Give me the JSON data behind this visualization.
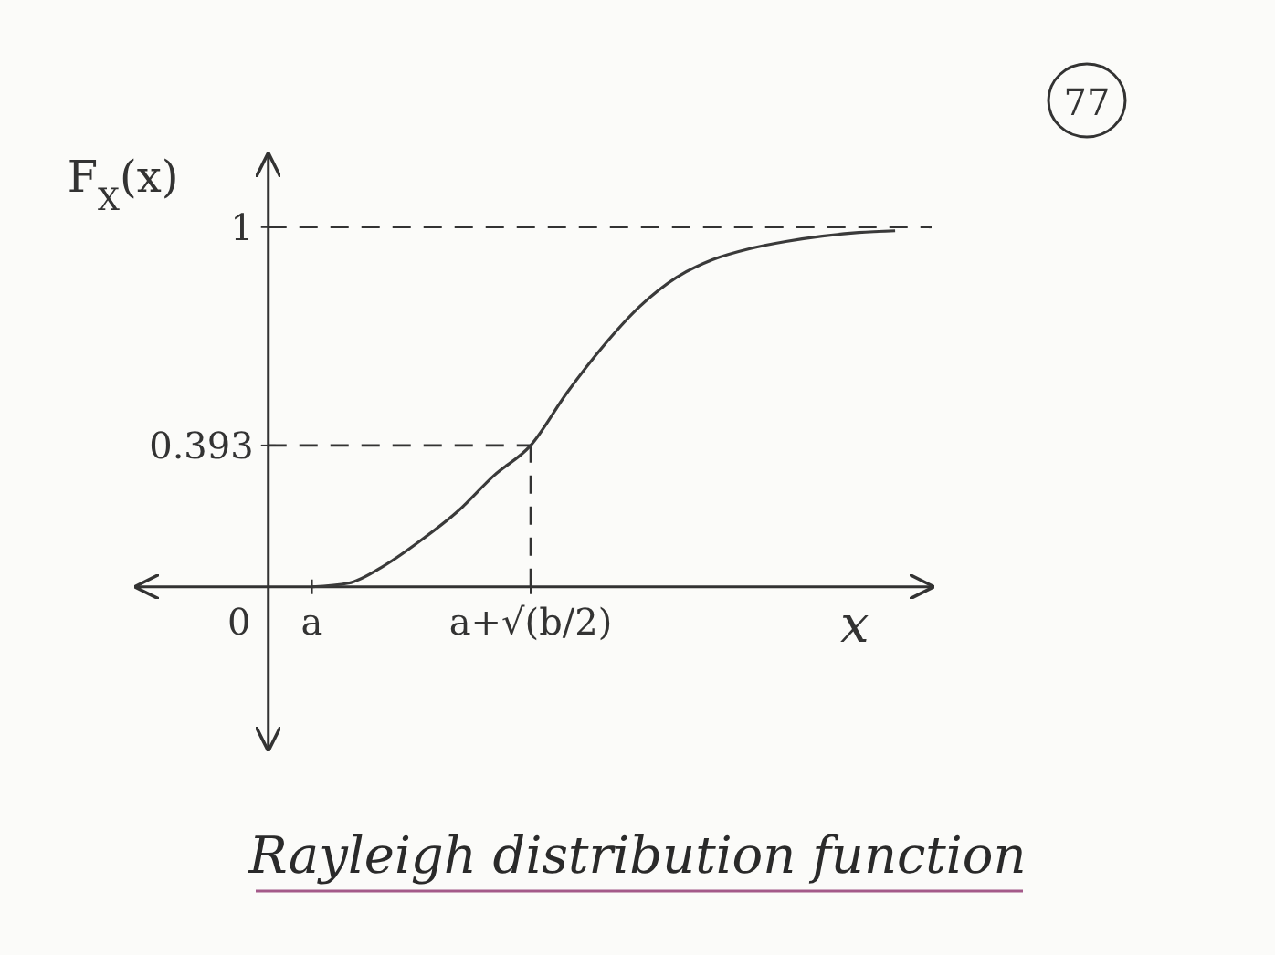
{
  "chart_data": {
    "type": "line",
    "title": "Rayleigh distribution function",
    "xlabel": "x",
    "ylabel": "F$_{X}$(x)",
    "annotations": [
      "77"
    ],
    "categories": [
      "0",
      null,
      "a",
      null,
      null,
      null,
      null,
      null,
      "a+√(b/2)",
      null,
      null,
      null,
      null,
      null,
      null,
      null,
      null,
      null,
      null
    ],
    "series": [
      {
        "color": "#3a3a3a",
        "values": [
          null,
          null,
          0,
          0.01,
          0.06,
          0.13,
          0.21,
          0.31,
          0.393,
          0.54,
          0.67,
          0.78,
          0.86,
          0.91,
          0.94,
          0.96,
          0.975,
          0.985,
          0.99
        ]
      }
    ],
    "ylim": [
      -0.45,
      1.2
    ],
    "yticks": [
      {
        "value": 0.393,
        "label": "0.393"
      },
      {
        "value": 1,
        "label": "1"
      }
    ],
    "ref_lines": [
      {
        "axis": "y",
        "value": 1,
        "line_style": "dashed"
      },
      {
        "axis": "y",
        "value": 0.393,
        "line_style": "dashed"
      },
      {
        "axis": "x",
        "value": "a+√(b/2)",
        "line_style": "dashed"
      }
    ],
    "marker": "none",
    "line_style": "solid"
  }
}
